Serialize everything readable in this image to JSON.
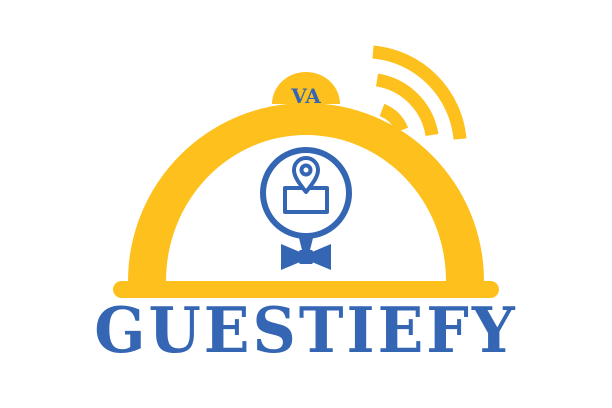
{
  "logo": {
    "brand_name": "GUESTIEFY",
    "knob_monogram": "VA",
    "colors": {
      "cloche_yellow": "#fdc01d",
      "brand_blue": "#3466b4",
      "background": "#ffffff"
    },
    "icons": [
      "cloche-icon",
      "wifi-signal-icon",
      "location-pin-icon",
      "bow-tie-icon"
    ]
  }
}
